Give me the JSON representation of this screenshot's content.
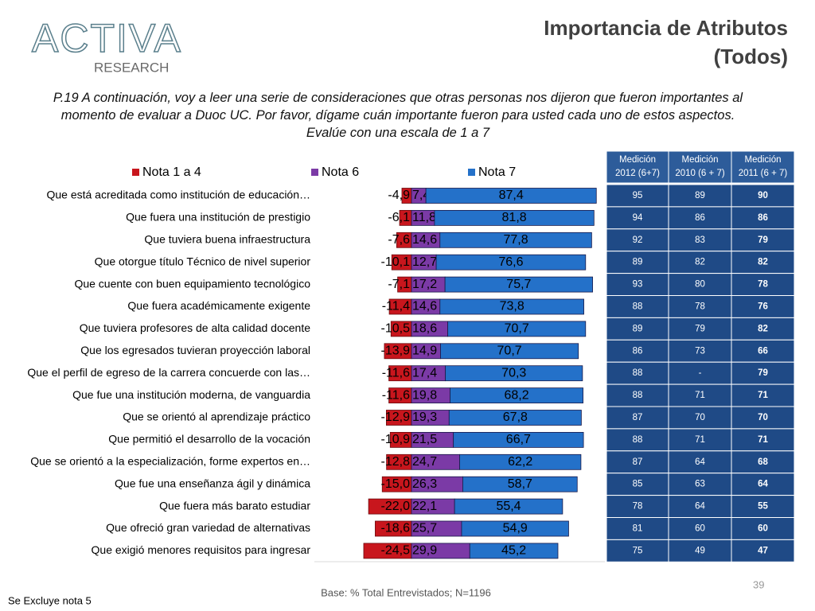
{
  "logo": {
    "brand": "ACTIVA",
    "sub": "RESEARCH"
  },
  "header": {
    "title_line1": "Importancia de Atributos",
    "title_line2": "(Todos)"
  },
  "question": "P.19 A continuación, voy a leer una serie de consideraciones que otras personas nos dijeron que fueron importantes al momento de evaluar a Duoc UC. Por favor, dígame cuán importante fueron para usted cada uno de estos aspectos. Evalúe con una escala de 1 a 7",
  "chart_data": {
    "type": "diverging_bar",
    "categories": [
      "Que está acreditada como institución de educación…",
      "Que fuera una institución de prestigio",
      "Que tuviera buena infraestructura",
      "Que otorgue título Técnico de nivel superior",
      "Que cuente con buen equipamiento tecnológico",
      "Que fuera académicamente exigente",
      "Que tuviera profesores de alta calidad docente",
      "Que los egresados tuvieran proyección laboral",
      "Que el perfil de egreso de la carrera concuerde con las…",
      "Que fue una institución moderna, de vanguardia",
      "Que se orientó al aprendizaje práctico",
      "Que permitió el desarrollo de la vocación",
      "Que se orientó a la especialización, forme expertos en…",
      "Que fue una  enseñanza ágil y dinámica",
      "Que fuera más barato estudiar",
      "Que ofreció  gran variedad de alternativas",
      "Que exigió menores requisitos para ingresar"
    ],
    "series": [
      {
        "name": "Nota 1 a 4",
        "color": "#c8161d",
        "values": [
          -4.9,
          -6.1,
          -7.6,
          -10.1,
          -7.1,
          -11.4,
          -10.5,
          -13.9,
          -11.6,
          -11.6,
          -12.9,
          -10.9,
          -12.8,
          -15.0,
          -22.0,
          -18.6,
          -24.5
        ],
        "value_labels": [
          "-4,9",
          "-6,1",
          "-7,6",
          "-10,1",
          "-7,1",
          "-11,4",
          "-10,5",
          "-13,9",
          "-11,6",
          "-11,6",
          "-12,9",
          "-10,9",
          "-12,8",
          "-15,0",
          "-22,0",
          "-18,6",
          "-24,5"
        ]
      },
      {
        "name": "Nota 6",
        "color": "#7b3aa6",
        "values": [
          7.4,
          11.8,
          14.6,
          12.7,
          17.2,
          14.6,
          18.6,
          14.9,
          17.4,
          19.8,
          19.3,
          21.5,
          24.7,
          26.3,
          22.1,
          25.7,
          29.9
        ],
        "value_labels": [
          "7,4",
          "11,8",
          "14,6",
          "12,7",
          "17,2",
          "14,6",
          "18,6",
          "14,9",
          "17,4",
          "19,8",
          "19,3",
          "21,5",
          "24,7",
          "26,3",
          "22,1",
          "25,7",
          "29,9"
        ]
      },
      {
        "name": "Nota 7",
        "color": "#2471c9",
        "values": [
          87.4,
          81.8,
          77.8,
          76.6,
          75.7,
          73.8,
          70.7,
          70.7,
          70.3,
          68.2,
          67.8,
          66.7,
          62.2,
          58.7,
          55.4,
          54.9,
          45.2
        ],
        "value_labels": [
          "87,4",
          "81,8",
          "77,8",
          "76,6",
          "75,7",
          "73,8",
          "70,7",
          "70,7",
          "70,3",
          "68,2",
          "67,8",
          "66,7",
          "62,2",
          "58,7",
          "55,4",
          "54,9",
          "45,2"
        ]
      }
    ]
  },
  "table": {
    "header": [
      [
        "Medición",
        "2012 (6+7)"
      ],
      [
        "Medición",
        "2010 (6 + 7)"
      ],
      [
        "Medición",
        "2011 (6 + 7)"
      ]
    ],
    "rows": [
      [
        95,
        89,
        90
      ],
      [
        94,
        86,
        86
      ],
      [
        92,
        83,
        79
      ],
      [
        89,
        82,
        82
      ],
      [
        93,
        80,
        78
      ],
      [
        88,
        78,
        76
      ],
      [
        89,
        79,
        82
      ],
      [
        86,
        73,
        66
      ],
      [
        88,
        "-",
        79
      ],
      [
        88,
        71,
        71
      ],
      [
        87,
        70,
        70
      ],
      [
        88,
        71,
        71
      ],
      [
        87,
        64,
        68
      ],
      [
        85,
        63,
        64
      ],
      [
        78,
        64,
        55
      ],
      [
        81,
        60,
        60
      ],
      [
        75,
        49,
        47
      ]
    ]
  },
  "footer": {
    "base": "Base: % Total Entrevistados; N=1196",
    "note": "Se Excluye nota 5",
    "page": "39"
  }
}
